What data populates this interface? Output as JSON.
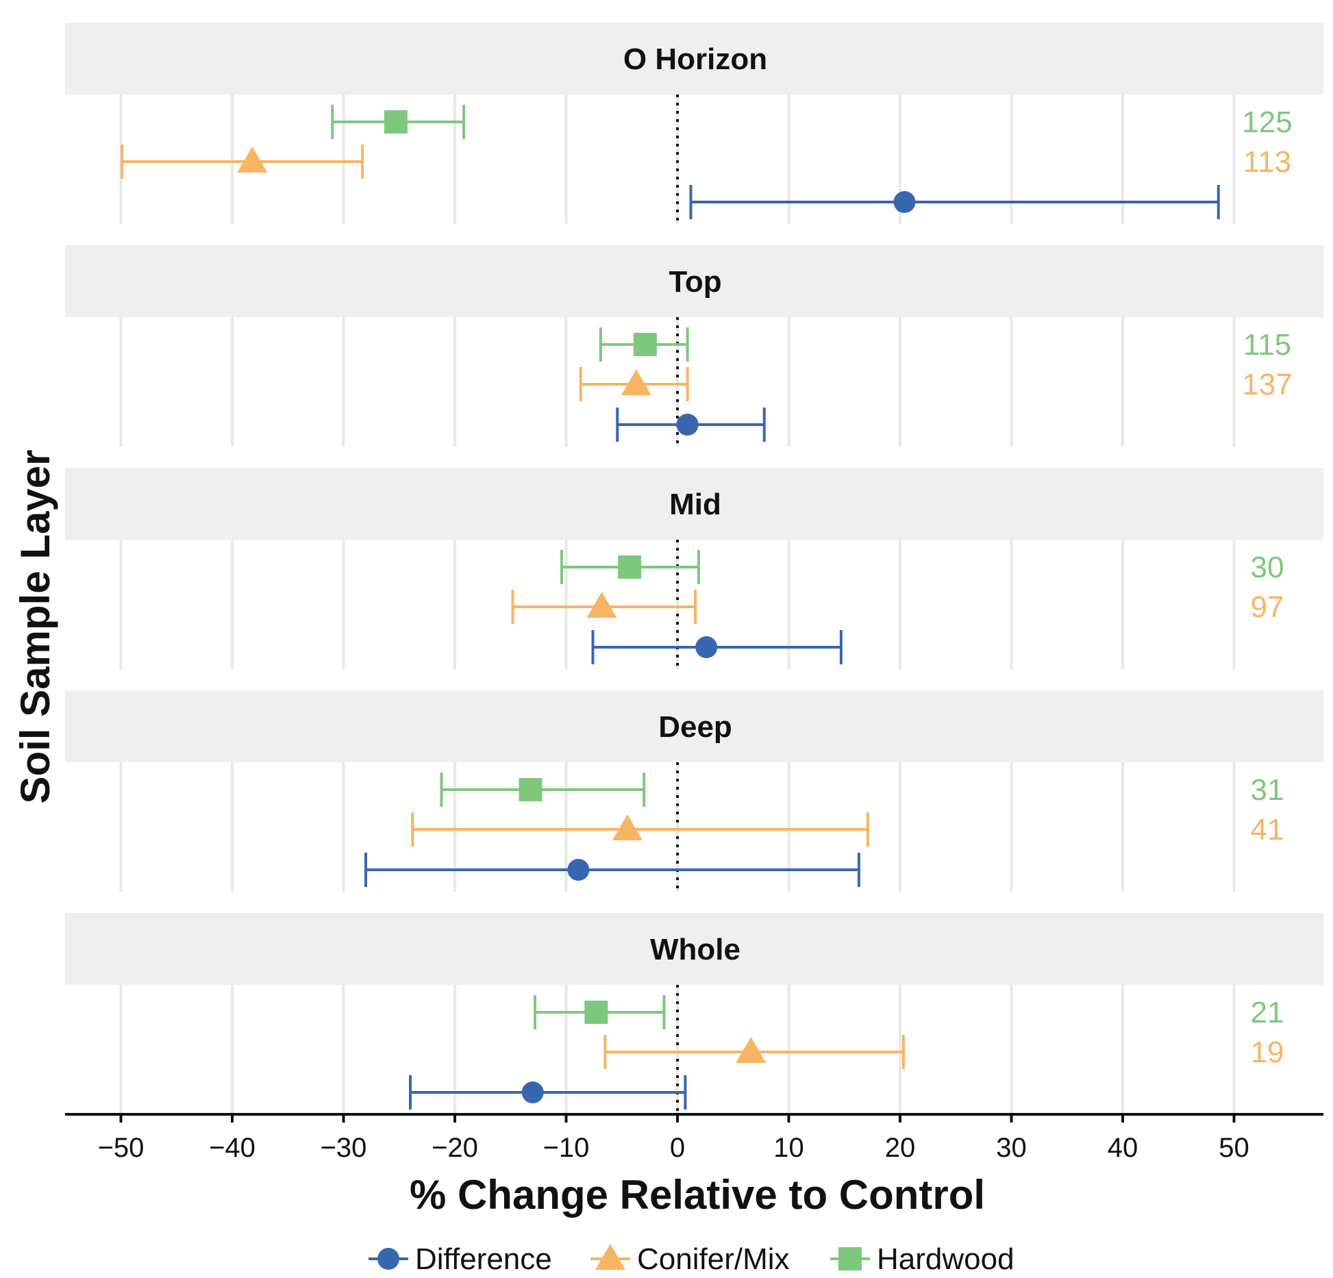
{
  "chart_data": {
    "type": "forest-plot",
    "xlabel": "% Change Relative to Control",
    "ylabel": "Soil Sample Layer",
    "xlim": [
      -55,
      58
    ],
    "xticks": [
      -50,
      -40,
      -30,
      -20,
      -10,
      0,
      10,
      20,
      30,
      40,
      50
    ],
    "xtick_labels": [
      "−50",
      "−40",
      "−30",
      "−20",
      "−10",
      "0",
      "10",
      "20",
      "30",
      "40",
      "50"
    ],
    "reference_line": 0,
    "legend_position": "bottom",
    "series": [
      {
        "name": "Difference",
        "label": "Difference",
        "color": "#3867b0",
        "marker": "circle-icon"
      },
      {
        "name": "Conifer/Mix",
        "label": "Conifer/Mix",
        "color": "#f9b463",
        "marker": "triangle-icon"
      },
      {
        "name": "Hardwood",
        "label": "Hardwood",
        "color": "#7ec87e",
        "marker": "square-icon"
      }
    ],
    "panels": [
      {
        "layer": "O Horizon",
        "n_hardwood": "125",
        "n_conifer": "113",
        "estimates": {
          "Hardwood": {
            "est": -25.3,
            "lo": -31.0,
            "hi": -19.2
          },
          "Conifer/Mix": {
            "est": -38.2,
            "lo": -49.9,
            "hi": -28.3
          },
          "Difference": {
            "est": 20.4,
            "lo": 1.2,
            "hi": 48.6
          }
        }
      },
      {
        "layer": "Top",
        "n_hardwood": "115",
        "n_conifer": "137",
        "estimates": {
          "Hardwood": {
            "est": -2.9,
            "lo": -6.9,
            "hi": 0.9
          },
          "Conifer/Mix": {
            "est": -3.7,
            "lo": -8.7,
            "hi": 0.9
          },
          "Difference": {
            "est": 0.9,
            "lo": -5.4,
            "hi": 7.8
          }
        }
      },
      {
        "layer": "Mid",
        "n_hardwood": "30",
        "n_conifer": "97",
        "estimates": {
          "Hardwood": {
            "est": -4.3,
            "lo": -10.4,
            "hi": 1.9
          },
          "Conifer/Mix": {
            "est": -6.8,
            "lo": -14.8,
            "hi": 1.6
          },
          "Difference": {
            "est": 2.6,
            "lo": -7.6,
            "hi": 14.7
          }
        }
      },
      {
        "layer": "Deep",
        "n_hardwood": "31",
        "n_conifer": "41",
        "estimates": {
          "Hardwood": {
            "est": -13.2,
            "lo": -21.2,
            "hi": -3.0
          },
          "Conifer/Mix": {
            "est": -4.5,
            "lo": -23.8,
            "hi": 17.1
          },
          "Difference": {
            "est": -8.9,
            "lo": -28.0,
            "hi": 16.3
          }
        }
      },
      {
        "layer": "Whole",
        "n_hardwood": "21",
        "n_conifer": "19",
        "estimates": {
          "Hardwood": {
            "est": -7.3,
            "lo": -12.8,
            "hi": -1.2
          },
          "Conifer/Mix": {
            "est": 6.6,
            "lo": -6.5,
            "hi": 20.3
          },
          "Difference": {
            "est": -13.0,
            "lo": -24.0,
            "hi": 0.7
          }
        }
      }
    ]
  }
}
